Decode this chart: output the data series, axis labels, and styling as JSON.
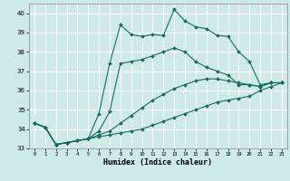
{
  "xlabel": "Humidex (Indice chaleur)",
  "xlim": [
    -0.5,
    23.5
  ],
  "ylim": [
    33,
    40.5
  ],
  "yticks": [
    33,
    34,
    35,
    36,
    37,
    38,
    39,
    40
  ],
  "xticks": [
    0,
    1,
    2,
    3,
    4,
    5,
    6,
    7,
    8,
    9,
    10,
    11,
    12,
    13,
    14,
    15,
    16,
    17,
    18,
    19,
    20,
    21,
    22,
    23
  ],
  "background_color": "#ceeae6",
  "grid_color": "#ffffff",
  "line_color": "#1a6b5e",
  "curves": [
    {
      "x": [
        0,
        1,
        2,
        3,
        4,
        5,
        6,
        7,
        8,
        9,
        10,
        11,
        12,
        13,
        14,
        15,
        16,
        17,
        18,
        19,
        20,
        21,
        22,
        23
      ],
      "y": [
        34.3,
        34.1,
        33.2,
        33.3,
        33.4,
        33.5,
        34.8,
        37.4,
        39.4,
        38.9,
        38.8,
        38.9,
        38.85,
        40.2,
        39.6,
        39.3,
        39.2,
        38.85,
        38.8,
        38.0,
        37.5,
        36.3,
        36.4,
        36.4
      ]
    },
    {
      "x": [
        0,
        1,
        2,
        3,
        4,
        5,
        6,
        7,
        8,
        9,
        10,
        11,
        12,
        13,
        14,
        15,
        16,
        17,
        18,
        19,
        20,
        21,
        22,
        23
      ],
      "y": [
        34.3,
        34.1,
        33.2,
        33.3,
        33.4,
        33.5,
        33.9,
        34.9,
        37.4,
        37.5,
        37.6,
        37.8,
        38.0,
        38.2,
        38.0,
        37.5,
        37.2,
        37.0,
        36.8,
        36.3,
        36.3,
        36.2,
        36.4,
        36.4
      ]
    },
    {
      "x": [
        0,
        1,
        2,
        3,
        4,
        5,
        6,
        7,
        8,
        9,
        10,
        11,
        12,
        13,
        14,
        15,
        16,
        17,
        18,
        19,
        20,
        21,
        22,
        23
      ],
      "y": [
        34.3,
        34.1,
        33.2,
        33.3,
        33.4,
        33.5,
        33.7,
        33.9,
        34.3,
        34.7,
        35.1,
        35.5,
        35.8,
        36.1,
        36.3,
        36.5,
        36.6,
        36.6,
        36.5,
        36.4,
        36.3,
        36.2,
        36.4,
        36.4
      ]
    },
    {
      "x": [
        0,
        1,
        2,
        3,
        4,
        5,
        6,
        7,
        8,
        9,
        10,
        11,
        12,
        13,
        14,
        15,
        16,
        17,
        18,
        19,
        20,
        21,
        22,
        23
      ],
      "y": [
        34.3,
        34.1,
        33.2,
        33.3,
        33.4,
        33.5,
        33.6,
        33.7,
        33.8,
        33.9,
        34.0,
        34.2,
        34.4,
        34.6,
        34.8,
        35.0,
        35.2,
        35.4,
        35.5,
        35.6,
        35.7,
        36.0,
        36.2,
        36.4
      ]
    }
  ]
}
